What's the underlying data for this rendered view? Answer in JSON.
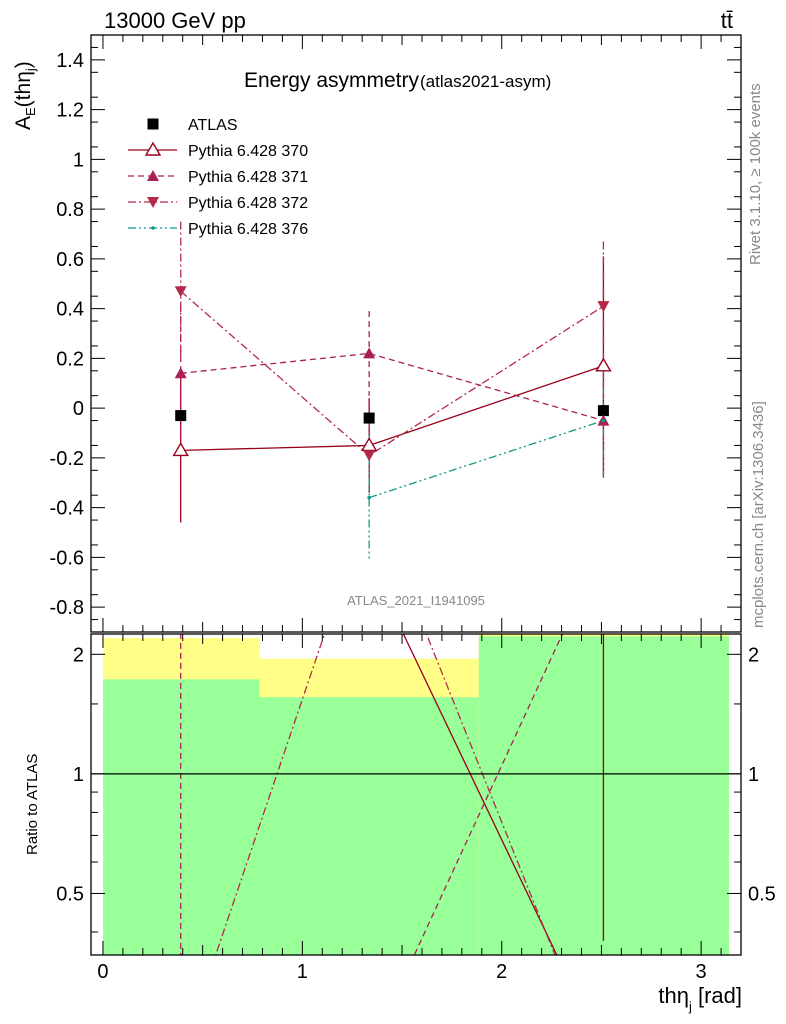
{
  "header": {
    "energy_pp": "13000 GeV pp",
    "process": "tt̄"
  },
  "title": {
    "main": "Energy asymmetry",
    "sub": "(atlas2021-asym)"
  },
  "side": {
    "rivet": "Rivet 3.1.10, ≥ 100k events",
    "mcplots": "mcplots.cern.ch [arXiv:1306.3436]"
  },
  "watermark": "ATLAS_2021_I1941095",
  "axes": {
    "ylabel_base": "A",
    "ylabel_sub": "E",
    "ylabel_arg": "(thη",
    "ylabel_argsub": "j",
    "ylabel_close": ")",
    "ratio_ylabel": "Ratio to ATLAS",
    "xlabel_base": "thη",
    "xlabel_sub": "j",
    "xlabel_unit": " [rad]"
  },
  "colors": {
    "band_inner": "#99ff99",
    "band_outer": "#ffff88",
    "s370": "#99001a",
    "s371": "#aa1f55",
    "s372": "#b22a4a",
    "s376": "#119988"
  },
  "chart_data": {
    "type": "scatter",
    "xlim": [
      -0.06,
      3.2
    ],
    "ylim": [
      -0.9,
      1.5
    ],
    "ratio_ylim": [
      0.35,
      2.25
    ],
    "xticks": [
      0,
      1,
      2,
      3
    ],
    "yticks": [
      -0.8,
      -0.6,
      -0.4,
      -0.2,
      0,
      0.2,
      0.4,
      0.6,
      0.8,
      1,
      1.2,
      1.4
    ],
    "ratio_yticks": [
      0.5,
      1,
      2
    ],
    "xlabel": "thηj [rad]",
    "ylabel": "AE(thηj)",
    "bins": [
      [
        0.0,
        0.785
      ],
      [
        0.785,
        1.885
      ],
      [
        1.885,
        3.14
      ]
    ],
    "legend_position": "top-left",
    "series": [
      {
        "name": "ATLAS",
        "style": "data",
        "x": [
          0.39,
          1.335,
          2.51
        ],
        "y": [
          -0.03,
          -0.04,
          -0.01
        ],
        "yerr": [
          0,
          0,
          0
        ]
      },
      {
        "name": "Pythia 6.428 370",
        "style": "open-triangle-up",
        "x": [
          0.39,
          1.335,
          2.51
        ],
        "y": [
          -0.17,
          -0.15,
          0.17
        ],
        "yerr": [
          0.29,
          0.19,
          0.44
        ]
      },
      {
        "name": "Pythia 6.428 371",
        "style": "filled-triangle-up",
        "x": [
          0.39,
          1.335,
          2.51
        ],
        "y": [
          0.14,
          0.22,
          -0.05
        ],
        "yerr": [
          0.27,
          0.17,
          0.23
        ]
      },
      {
        "name": "Pythia 6.428 372",
        "style": "filled-triangle-down",
        "x": [
          0.39,
          1.335,
          2.51
        ],
        "y": [
          0.47,
          -0.19,
          0.41
        ],
        "yerr": [
          0.28,
          0.14,
          0.26
        ]
      },
      {
        "name": "Pythia 6.428 376",
        "style": "dot",
        "x": [
          1.335,
          2.51
        ],
        "y": [
          -0.36,
          -0.05
        ],
        "yerr": [
          0.25,
          0.22
        ]
      }
    ],
    "ratio": {
      "reference": 1,
      "band_inner": [
        [
          0.34,
          1.73
        ],
        [
          0.34,
          1.56
        ],
        [
          0.34,
          2.22
        ]
      ],
      "band_outer": [
        [
          0.34,
          2.2
        ],
        [
          0.54,
          1.95
        ],
        [
          0.34,
          2.3
        ]
      ],
      "lines": [
        {
          "name": "Pythia 6.428 370",
          "dash": "none",
          "points": [
            [
              1.48,
              2.4
            ],
            [
              2.34,
              0.3
            ]
          ]
        },
        {
          "name": "Pythia 6.428 370",
          "dash": "none",
          "points": [
            [
              2.51,
              2.4
            ],
            [
              2.51,
              0.38
            ]
          ]
        },
        {
          "name": "Pythia 6.428 371",
          "dash": "6,4",
          "points": [
            [
              0.39,
              2.4
            ],
            [
              0.39,
              0.3
            ]
          ]
        },
        {
          "name": "Pythia 6.428 371",
          "dash": "6,4",
          "points": [
            [
              1.5,
              0.3
            ],
            [
              2.33,
              2.4
            ]
          ]
        },
        {
          "name": "Pythia 6.428 372",
          "dash": "8,3,2,3",
          "points": [
            [
              0.52,
              0.3
            ],
            [
              1.13,
              2.4
            ]
          ]
        },
        {
          "name": "Pythia 6.428 372",
          "dash": "8,3,2,3",
          "points": [
            [
              1.6,
              2.4
            ],
            [
              2.32,
              0.3
            ]
          ]
        }
      ]
    }
  }
}
